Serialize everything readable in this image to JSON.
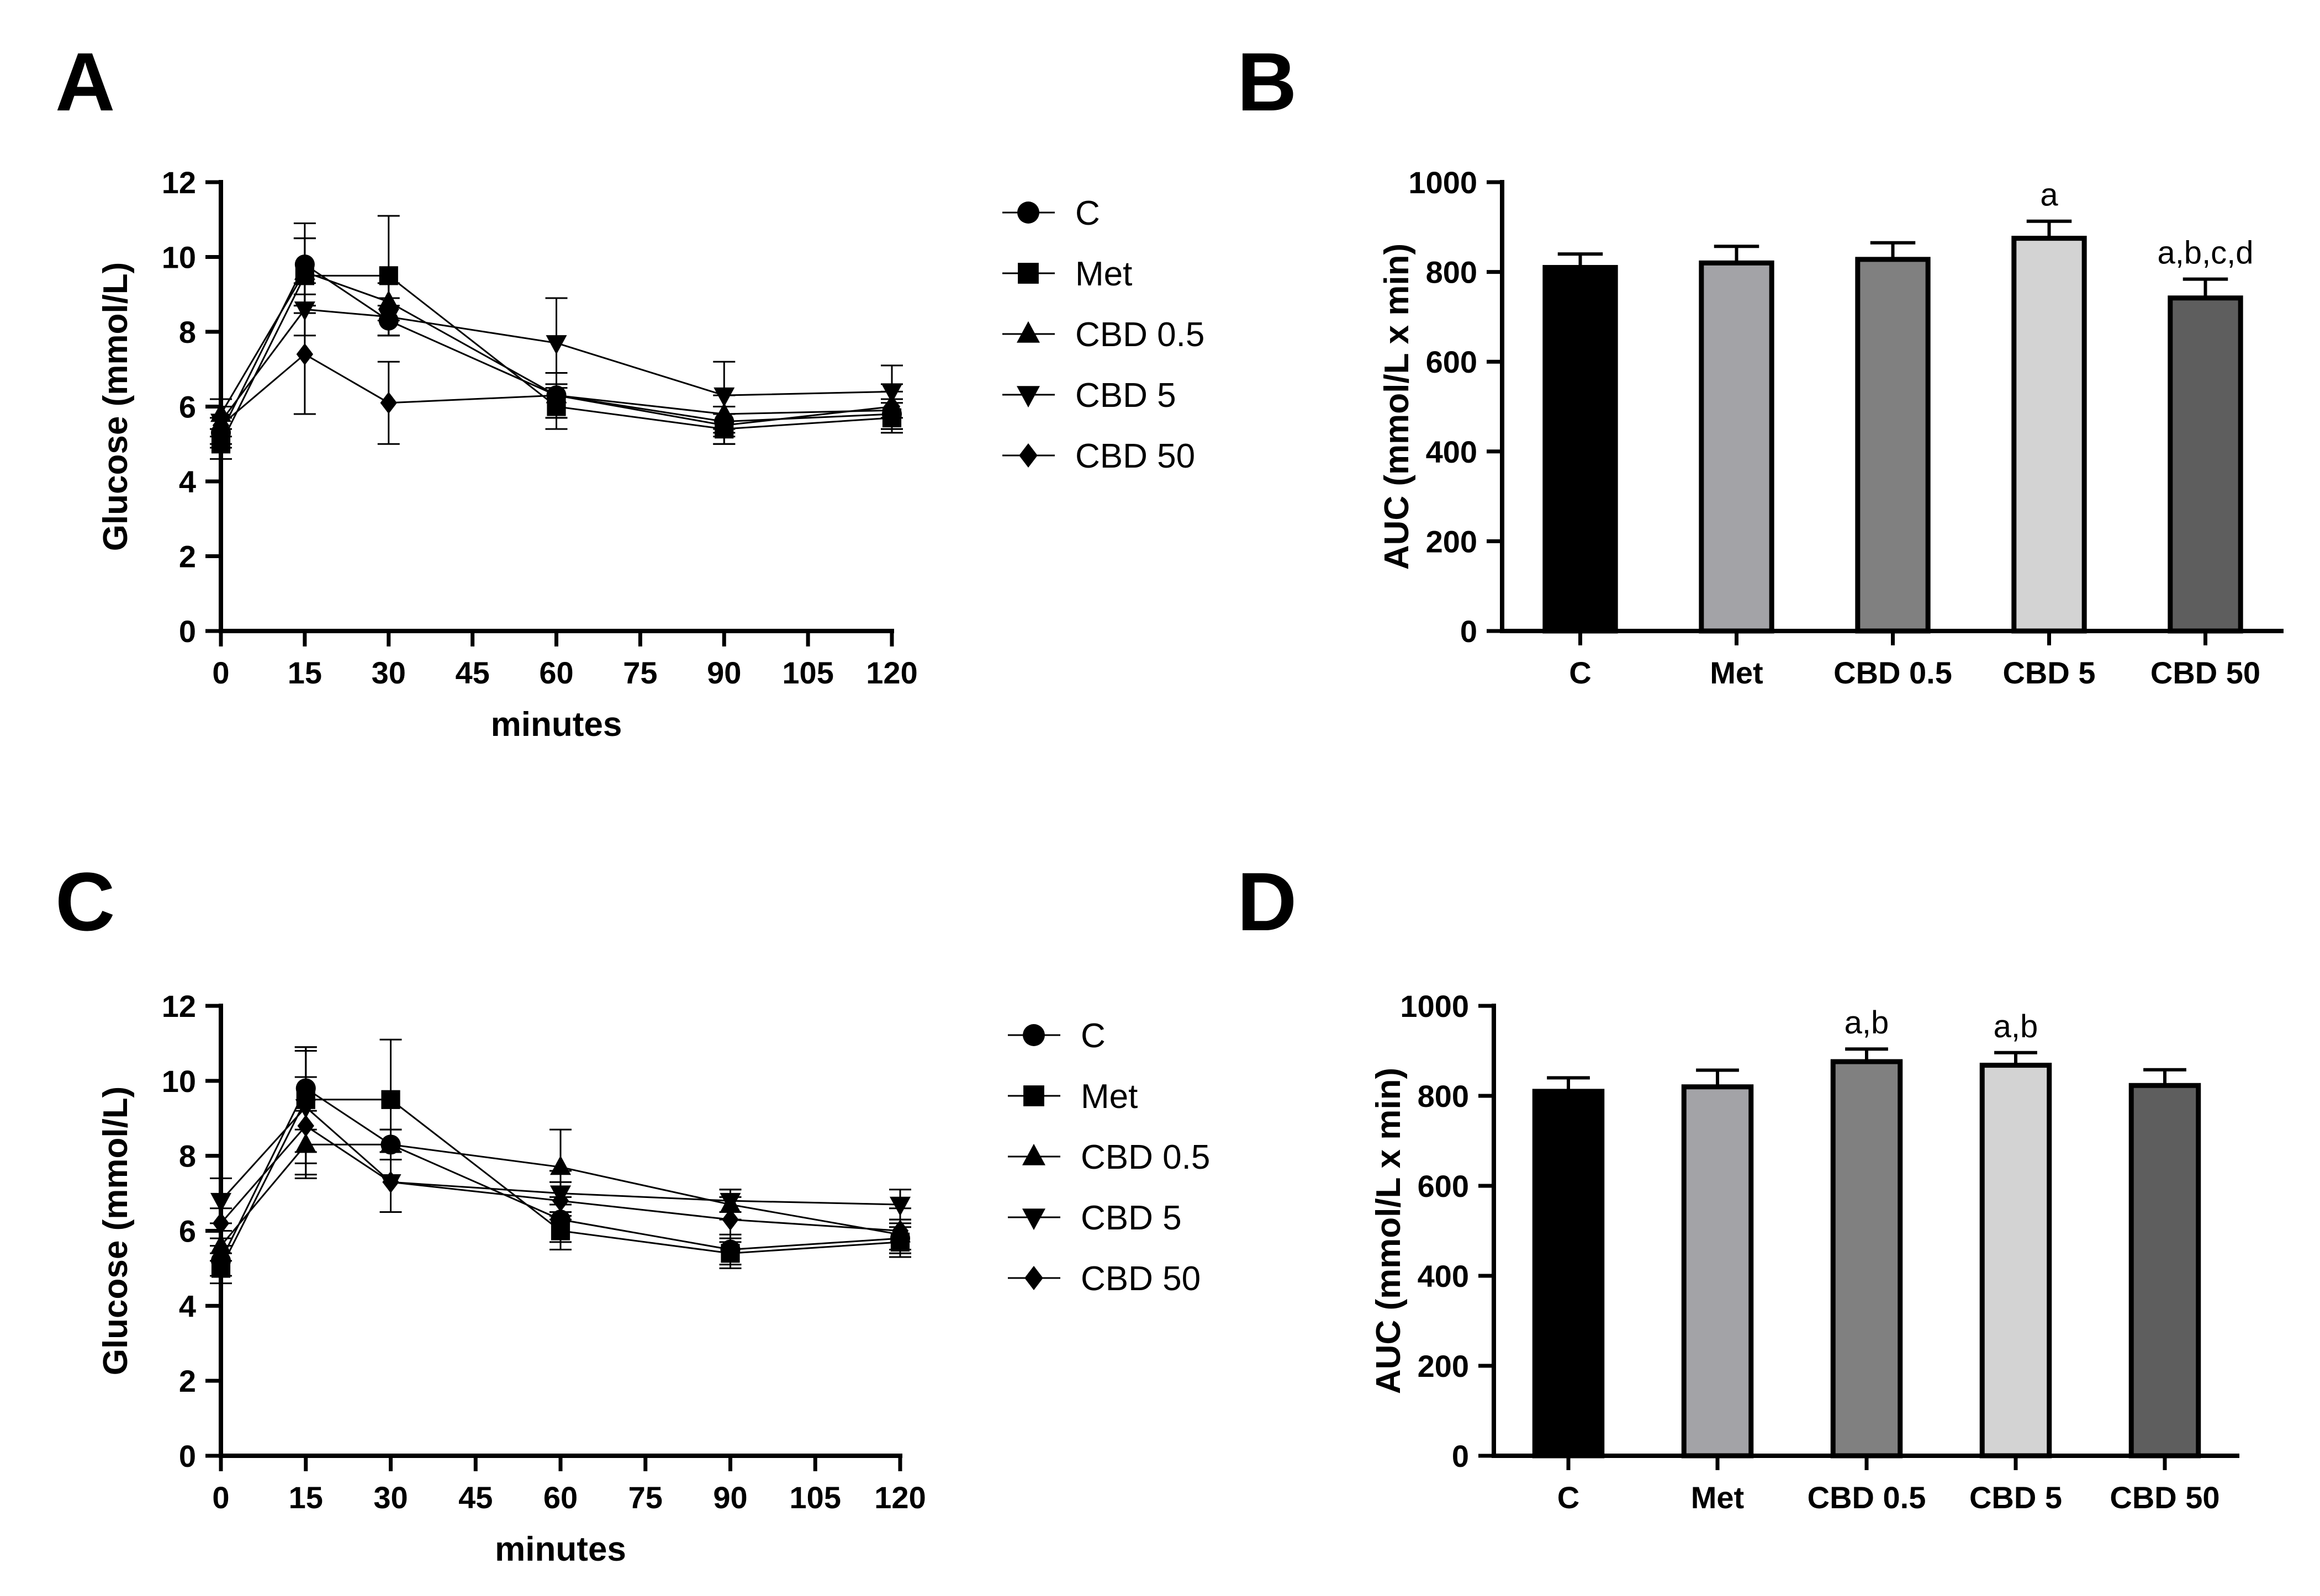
{
  "panel_labels": [
    "A",
    "B",
    "C",
    "D"
  ],
  "chart_data": [
    {
      "panel": "A",
      "type": "line",
      "xlabel": "minutes",
      "ylabel": "Glucose (mmol/L)",
      "xlim": [
        0,
        120
      ],
      "ylim": [
        0,
        12
      ],
      "xticks": [
        "0",
        "15",
        "30",
        "45",
        "60",
        "75",
        "90",
        "105",
        "120"
      ],
      "yticks": [
        "0",
        "2",
        "4",
        "6",
        "8",
        "10",
        "12"
      ],
      "x": [
        0,
        15,
        30,
        60,
        90,
        120
      ],
      "legend_position": "right",
      "series": [
        {
          "name": "C",
          "marker": "circle",
          "values": [
            5.3,
            9.8,
            8.3,
            6.3,
            5.6,
            5.8
          ],
          "errors": [
            0.4,
            1.1,
            0.4,
            0.6,
            0.4,
            0.4
          ]
        },
        {
          "name": "Met",
          "marker": "square",
          "values": [
            5.0,
            9.5,
            9.5,
            6.0,
            5.4,
            5.7
          ],
          "errors": [
            0.4,
            1.0,
            1.6,
            0.6,
            0.4,
            0.4
          ]
        },
        {
          "name": "CBD 0.5",
          "marker": "triangle-up",
          "values": [
            5.8,
            9.6,
            8.8,
            6.3,
            5.8,
            5.9
          ],
          "errors": [
            0.4,
            0.9,
            0.5,
            0.6,
            0.5,
            0.5
          ]
        },
        {
          "name": "CBD 5",
          "marker": "triangle-down",
          "values": [
            5.6,
            8.6,
            8.4,
            7.7,
            6.3,
            6.4
          ],
          "errors": [
            0.4,
            0.7,
            0.5,
            1.2,
            0.9,
            0.7
          ]
        },
        {
          "name": "CBD 50",
          "marker": "diamond",
          "values": [
            5.5,
            7.4,
            6.1,
            6.3,
            5.5,
            6.0
          ],
          "errors": [
            0.5,
            1.6,
            1.1,
            0.6,
            0.5,
            0.6
          ]
        }
      ]
    },
    {
      "panel": "B",
      "type": "bar",
      "ylabel": "AUC (mmol/L x min)",
      "ylim": [
        0,
        1000
      ],
      "yticks": [
        "0",
        "200",
        "400",
        "600",
        "800",
        "1000"
      ],
      "categories": [
        "C",
        "Met",
        "CBD 0.5",
        "CBD 5",
        "CBD 50"
      ],
      "values": [
        810,
        820,
        828,
        875,
        742
      ],
      "errors": [
        30,
        37,
        37,
        38,
        42
      ],
      "colors": [
        "#000000",
        "#a3a3a7",
        "#808080",
        "#d3d3d3",
        "#5e5e5e"
      ],
      "annotations": [
        "",
        "",
        "",
        "a",
        "a,b,c,d"
      ]
    },
    {
      "panel": "C",
      "type": "line",
      "xlabel": "minutes",
      "ylabel": "Glucose (mmol/L)",
      "xlim": [
        0,
        120
      ],
      "ylim": [
        0,
        12
      ],
      "xticks": [
        "0",
        "15",
        "30",
        "45",
        "60",
        "75",
        "90",
        "105",
        "120"
      ],
      "yticks": [
        "0",
        "2",
        "4",
        "6",
        "8",
        "10",
        "12"
      ],
      "x": [
        0,
        15,
        30,
        60,
        90,
        120
      ],
      "legend_position": "right",
      "series": [
        {
          "name": "C",
          "marker": "circle",
          "values": [
            5.2,
            9.8,
            8.3,
            6.3,
            5.5,
            5.8
          ],
          "errors": [
            0.4,
            1.1,
            0.4,
            0.6,
            0.4,
            0.4
          ]
        },
        {
          "name": "Met",
          "marker": "square",
          "values": [
            5.0,
            9.5,
            9.5,
            6.0,
            5.4,
            5.7
          ],
          "errors": [
            0.4,
            1.4,
            1.6,
            0.5,
            0.4,
            0.4
          ]
        },
        {
          "name": "CBD 0.5",
          "marker": "triangle-up",
          "values": [
            5.6,
            8.3,
            8.3,
            7.7,
            6.7,
            5.9
          ],
          "errors": [
            0.4,
            0.9,
            0.4,
            1.0,
            0.4,
            0.4
          ]
        },
        {
          "name": "CBD 5",
          "marker": "triangle-down",
          "values": [
            6.8,
            9.3,
            7.3,
            7.0,
            6.8,
            6.7
          ],
          "errors": [
            0.6,
            1.5,
            0.8,
            0.6,
            0.3,
            0.4
          ]
        },
        {
          "name": "CBD 50",
          "marker": "diamond",
          "values": [
            6.2,
            8.8,
            7.3,
            6.8,
            6.3,
            6.0
          ],
          "errors": [
            0.4,
            1.3,
            0.8,
            0.5,
            0.6,
            0.6
          ]
        }
      ]
    },
    {
      "panel": "D",
      "type": "bar",
      "ylabel": "AUC (mmol/L x min)",
      "ylim": [
        0,
        1000
      ],
      "yticks": [
        "0",
        "200",
        "400",
        "600",
        "800",
        "1000"
      ],
      "categories": [
        "C",
        "Met",
        "CBD 0.5",
        "CBD 5",
        "CBD 50"
      ],
      "values": [
        810,
        820,
        876,
        868,
        823
      ],
      "errors": [
        30,
        37,
        28,
        28,
        35
      ],
      "colors": [
        "#000000",
        "#a3a3a7",
        "#808080",
        "#d3d3d3",
        "#5e5e5e"
      ],
      "annotations": [
        "",
        "",
        "a,b",
        "a,b",
        ""
      ]
    }
  ]
}
